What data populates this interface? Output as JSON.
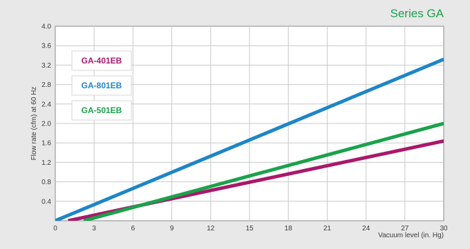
{
  "chart_data": {
    "type": "line",
    "title": "Series GA",
    "xlabel": "Vacuum level (in. Hg)",
    "ylabel": "Flow rate (cfm) at 60 Hz",
    "xlim": [
      0,
      30
    ],
    "ylim": [
      0,
      4.0
    ],
    "x_ticks": [
      "0",
      "3",
      "6",
      "9",
      "12",
      "15",
      "18",
      "21",
      "24",
      "27",
      "30"
    ],
    "y_ticks": [
      "0.4",
      "0.8",
      "1.2",
      "1.6",
      "2.0",
      "2.4",
      "2.8",
      "3.2",
      "3.6",
      "4.0"
    ],
    "grid": true,
    "legend_position": "top-left",
    "series": [
      {
        "name": "GA-401EB",
        "color": "#a8196a",
        "points": [
          [
            1,
            0
          ],
          [
            30,
            1.64
          ]
        ]
      },
      {
        "name": "GA-801EB",
        "color": "#1d86c6",
        "points": [
          [
            0,
            0
          ],
          [
            30,
            3.32
          ]
        ]
      },
      {
        "name": "GA-501EB",
        "color": "#1aa24b",
        "points": [
          [
            2.2,
            0
          ],
          [
            30,
            2.0
          ]
        ]
      }
    ],
    "legend_order": [
      0,
      1,
      2
    ],
    "colors": {
      "title": "#1aa24b",
      "axis": "#8a8a8a",
      "grid": "#c8c8c8",
      "plot_bg": "#ffffff",
      "page_bg": "#e8e8e8"
    }
  }
}
